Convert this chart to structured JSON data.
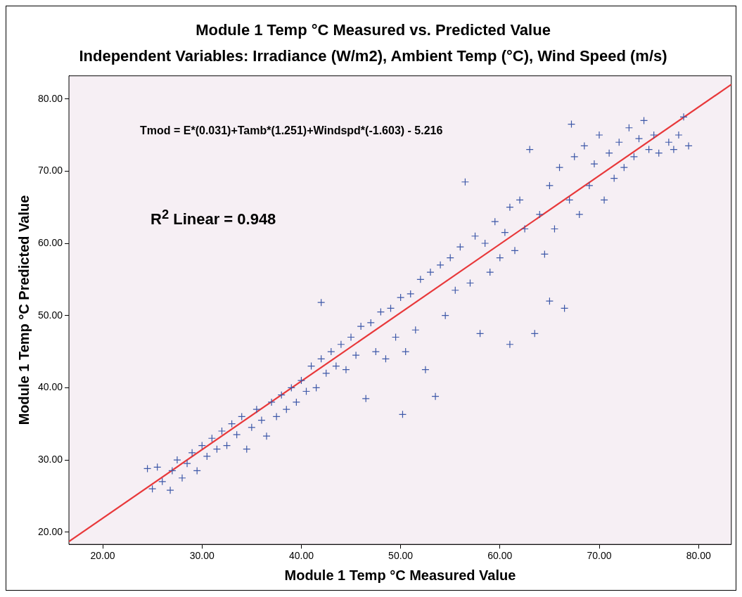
{
  "chart_data": {
    "type": "scatter",
    "title": "Module 1 Temp °C Measured vs. Predicted Value",
    "subtitle": "Independent Variables: Irradiance (W/m2), Ambient Temp (°C), Wind Speed (m/s)",
    "xlabel": "Module 1 Temp °C Measured Value",
    "ylabel": "Module 1 Temp °C Predicted Value",
    "annotations": [
      "Tmod = E*(0.031)+Tamb*(1.251)+Windspd*(-1.603) - 5.216",
      "R$^{2}$ Linear = 0.948"
    ],
    "xlim": [
      16.6,
      83.3
    ],
    "ylim": [
      18.3,
      83.2
    ],
    "xticks": [
      {
        "value": 20,
        "label": "20.00"
      },
      {
        "value": 30,
        "label": "30.00"
      },
      {
        "value": 40,
        "label": "40.00"
      },
      {
        "value": 50,
        "label": "50.00"
      },
      {
        "value": 60,
        "label": "60.00"
      },
      {
        "value": 70,
        "label": "70.00"
      },
      {
        "value": 80,
        "label": "80.00"
      }
    ],
    "yticks": [
      {
        "value": 20,
        "label": "20.00"
      },
      {
        "value": 30,
        "label": "30.00"
      },
      {
        "value": 40,
        "label": "40.00"
      },
      {
        "value": 50,
        "label": "50.00"
      },
      {
        "value": 60,
        "label": "60.00"
      },
      {
        "value": 70,
        "label": "70.00"
      },
      {
        "value": 80,
        "label": "80.00"
      }
    ],
    "grid": false,
    "legend": false,
    "series": [
      {
        "type": "scatter",
        "marker": "cross",
        "color": "#3d58a8",
        "x": [
          24.5,
          25,
          25.5,
          26,
          26.8,
          27,
          27.5,
          28,
          28.5,
          29,
          29.5,
          30,
          30.5,
          31,
          31.5,
          32,
          32.5,
          33,
          33.5,
          34,
          34.5,
          35,
          35.5,
          36,
          36.5,
          37,
          37.5,
          38,
          38.5,
          39,
          39.5,
          40,
          40.5,
          41,
          41.5,
          42,
          42,
          42.5,
          43,
          43.5,
          44,
          44.5,
          45,
          45.5,
          46,
          46.5,
          47,
          47.5,
          48,
          48.5,
          49,
          49.5,
          50,
          50.2,
          50.5,
          51,
          51.5,
          52,
          52.5,
          53,
          53.5,
          54,
          54.5,
          55,
          55.5,
          56,
          56.5,
          57,
          57.5,
          58,
          58.5,
          59,
          59.5,
          60,
          60.5,
          61,
          61,
          61.5,
          62,
          62.5,
          63,
          63.5,
          64,
          64.5,
          65,
          65,
          65.5,
          66,
          66.5,
          67,
          67.2,
          67.5,
          68,
          68.5,
          69,
          69.5,
          70,
          70.5,
          71,
          71.5,
          72,
          72.5,
          73,
          73.5,
          74,
          74.5,
          75,
          75.5,
          76,
          77,
          77.5,
          78,
          78.5,
          79
        ],
        "values": [
          28.8,
          26,
          29,
          27,
          25.8,
          28.5,
          30,
          27.5,
          29.5,
          31,
          28.5,
          32,
          30.5,
          33,
          31.5,
          34,
          32,
          35,
          33.5,
          36,
          31.5,
          34.5,
          37,
          35.5,
          33.3,
          38,
          36,
          39,
          37,
          40,
          38,
          41,
          39.5,
          43,
          40,
          44,
          51.8,
          42,
          45,
          43,
          46,
          42.5,
          47,
          44.5,
          48.5,
          38.5,
          49,
          45,
          50.5,
          44,
          51,
          47,
          52.5,
          36.3,
          45,
          53,
          48,
          55,
          42.5,
          56,
          38.8,
          57,
          50,
          58,
          53.5,
          59.5,
          68.5,
          54.5,
          61,
          47.5,
          60,
          56,
          63,
          58,
          61.5,
          65,
          46,
          59,
          66,
          62,
          73,
          47.5,
          64,
          58.5,
          68,
          52,
          62,
          70.5,
          51,
          66,
          76.5,
          72,
          64,
          73.5,
          68,
          71,
          75,
          66,
          72.5,
          69,
          74,
          70.5,
          76,
          72,
          74.5,
          77,
          73,
          75,
          72.5,
          74,
          73,
          75,
          77.5,
          73.5
        ]
      },
      {
        "type": "line",
        "marker": "none",
        "color": "#e8383a",
        "x": [
          16.6,
          83.3
        ],
        "values": [
          18.7,
          82.0
        ]
      }
    ]
  }
}
